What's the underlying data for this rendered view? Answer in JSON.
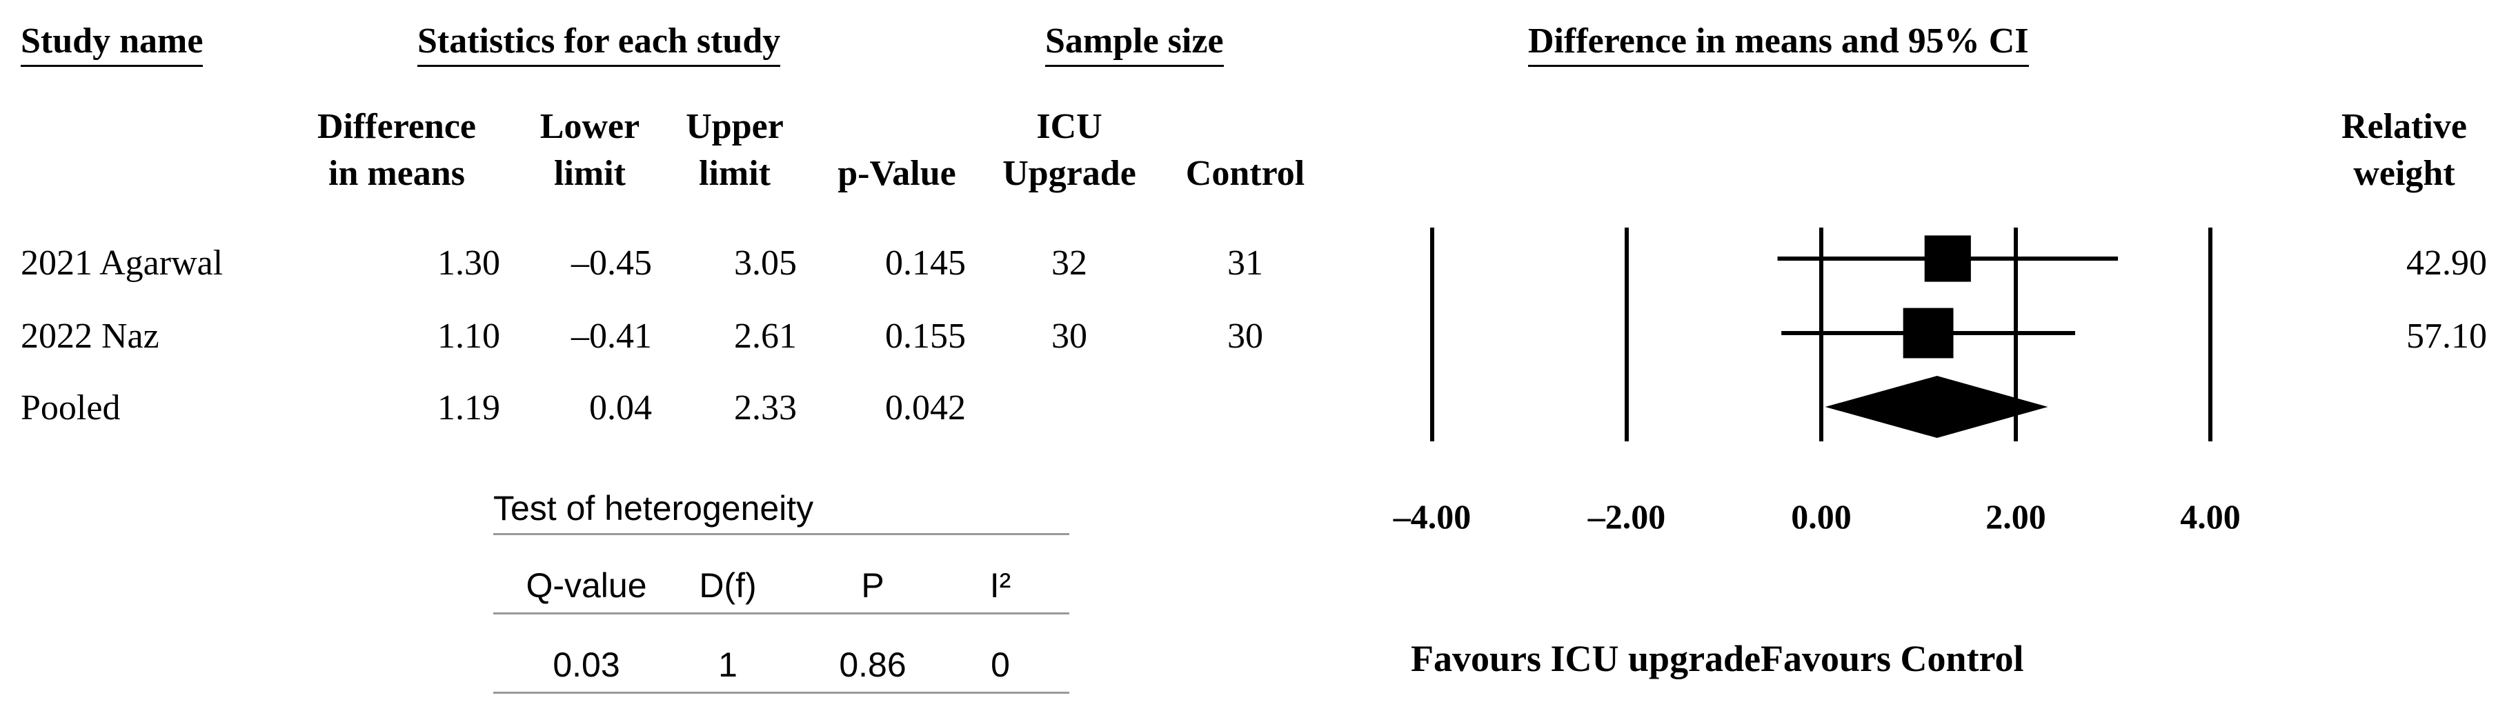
{
  "headers": {
    "study_name": "Study name",
    "statistics": "Statistics for each study",
    "sample_size": "Sample size",
    "ci_title": "Difference in means and 95% CI"
  },
  "columns": {
    "diff_line1": "Difference",
    "diff_line2": "in means",
    "lower_line1": "Lower",
    "lower_line2": "limit",
    "upper_line1": "Upper",
    "upper_line2": "limit",
    "pvalue": "p-Value",
    "icu_line1": "ICU",
    "icu_line2": "Upgrade",
    "control": "Control",
    "weight_line1": "Relative",
    "weight_line2": "weight"
  },
  "rows": [
    {
      "name": "2021 Agarwal",
      "diff": "1.30",
      "lower": "–0.45",
      "upper": "3.05",
      "p": "0.145",
      "icu": "32",
      "control": "31",
      "weight": "42.90"
    },
    {
      "name": "2022 Naz",
      "diff": "1.10",
      "lower": "–0.41",
      "upper": "2.61",
      "p": "0.155",
      "icu": "30",
      "control": "30",
      "weight": "57.10"
    },
    {
      "name": "Pooled",
      "diff": "1.19",
      "lower": "0.04",
      "upper": "2.33",
      "p": "0.042",
      "icu": "",
      "control": "",
      "weight": ""
    }
  ],
  "heterogeneity": {
    "title": "Test of heterogeneity",
    "headers": [
      "Q-value",
      "D(f)",
      "P",
      "I²"
    ],
    "values": [
      "0.03",
      "1",
      "0.86",
      "0"
    ]
  },
  "favours": {
    "left": "Favours ICU upgrade",
    "right": "Favours Control"
  },
  "chart_data": {
    "type": "forest",
    "xlim": [
      -5.5,
      5.5
    ],
    "ticks": [
      -4,
      -2,
      0,
      2,
      4
    ],
    "tick_labels": [
      "–4.00",
      "–2.00",
      "0.00",
      "2.00",
      "4.00"
    ],
    "studies": [
      {
        "name": "2021 Agarwal",
        "estimate": 1.3,
        "lower": -0.45,
        "upper": 3.05,
        "weight": 42.9
      },
      {
        "name": "2022 Naz",
        "estimate": 1.1,
        "lower": -0.41,
        "upper": 2.61,
        "weight": 57.1
      }
    ],
    "pooled": {
      "name": "Pooled",
      "estimate": 1.19,
      "lower": 0.04,
      "upper": 2.33
    }
  }
}
